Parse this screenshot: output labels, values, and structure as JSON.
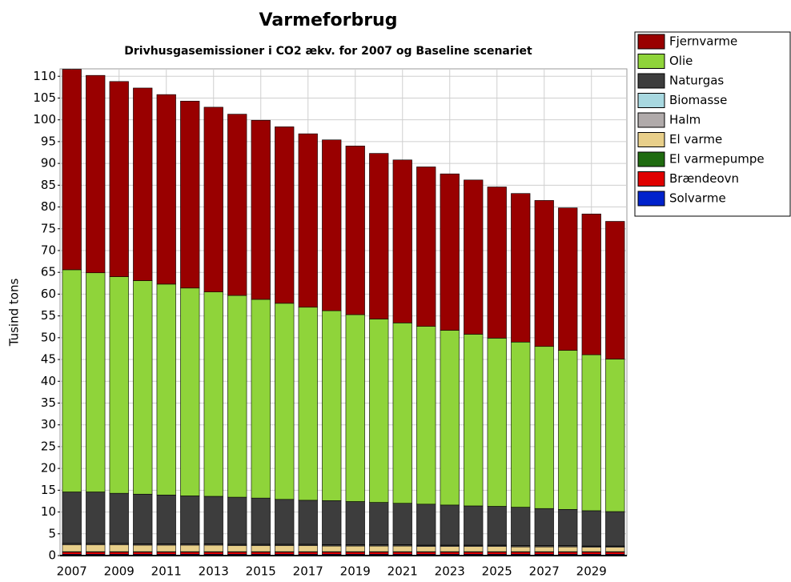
{
  "chart_data": {
    "type": "bar",
    "stacked": true,
    "title": "Varmeforbrug",
    "subtitle": "Drivhusgasemissioner i CO2 ækv. for 2007 og Baseline scenariet",
    "y_label": "Tusind tons",
    "categories": [
      "2007",
      null,
      "2009",
      null,
      "2011",
      null,
      "2013",
      null,
      "2015",
      null,
      "2017",
      null,
      "2019",
      null,
      "2021",
      null,
      "2023",
      null,
      "2025",
      null,
      "2027",
      null,
      "2029",
      null
    ],
    "series": [
      {
        "name": "Solvarme",
        "color": "#0022cc",
        "values": [
          0.3,
          0.3,
          0.3,
          0.3,
          0.3,
          0.3,
          0.3,
          0.3,
          0.3,
          0.3,
          0.3,
          0.3,
          0.3,
          0.3,
          0.3,
          0.3,
          0.3,
          0.3,
          0.3,
          0.3,
          0.3,
          0.3,
          0.3,
          0.3
        ]
      },
      {
        "name": "Brændeovn",
        "color": "#e00000",
        "values": [
          0.5,
          0.5,
          0.5,
          0.5,
          0.5,
          0.5,
          0.5,
          0.5,
          0.5,
          0.5,
          0.5,
          0.5,
          0.5,
          0.5,
          0.5,
          0.5,
          0.5,
          0.5,
          0.5,
          0.5,
          0.5,
          0.5,
          0.5,
          0.5
        ]
      },
      {
        "name": "El varmepumpe",
        "color": "#1f6b10",
        "values": [
          0.1,
          0.1,
          0.1,
          0.1,
          0.1,
          0.1,
          0.1,
          0.1,
          0.1,
          0.1,
          0.1,
          0.1,
          0.1,
          0.1,
          0.1,
          0.1,
          0.1,
          0.1,
          0.1,
          0.1,
          0.1,
          0.1,
          0.1,
          0.1
        ]
      },
      {
        "name": "El varme",
        "color": "#e8cf8a",
        "values": [
          1.6,
          1.6,
          1.6,
          1.5,
          1.5,
          1.5,
          1.5,
          1.4,
          1.4,
          1.4,
          1.4,
          1.3,
          1.3,
          1.3,
          1.3,
          1.2,
          1.2,
          1.2,
          1.2,
          1.1,
          1.1,
          1.1,
          1.0,
          1.0
        ]
      },
      {
        "name": "Halm",
        "color": "#b0aaaa",
        "values": [
          0.2,
          0.2,
          0.2,
          0.2,
          0.2,
          0.2,
          0.2,
          0.2,
          0.2,
          0.2,
          0.2,
          0.2,
          0.2,
          0.2,
          0.2,
          0.2,
          0.2,
          0.2,
          0.2,
          0.2,
          0.2,
          0.2,
          0.2,
          0.2
        ]
      },
      {
        "name": "Biomasse",
        "color": "#a8d8e0",
        "values": [
          0.1,
          0.1,
          0.1,
          0.1,
          0.1,
          0.1,
          0.1,
          0.1,
          0.1,
          0.1,
          0.1,
          0.1,
          0.1,
          0.1,
          0.1,
          0.1,
          0.1,
          0.1,
          0.1,
          0.1,
          0.1,
          0.1,
          0.1,
          0.1
        ]
      },
      {
        "name": "Naturgas",
        "color": "#3d3d3d",
        "values": [
          11.8,
          11.8,
          11.5,
          11.4,
          11.2,
          11.0,
          10.9,
          10.8,
          10.6,
          10.3,
          10.1,
          10.1,
          9.9,
          9.7,
          9.5,
          9.4,
          9.2,
          9.0,
          8.9,
          8.8,
          8.5,
          8.3,
          8.1,
          7.9
        ]
      },
      {
        "name": "Olie",
        "color": "#8fd43a",
        "values": [
          51.0,
          50.3,
          49.7,
          49.0,
          48.4,
          47.7,
          46.9,
          46.3,
          45.6,
          45.0,
          44.3,
          43.6,
          42.9,
          42.1,
          41.4,
          40.8,
          40.1,
          39.4,
          38.6,
          37.9,
          37.2,
          36.5,
          35.8,
          35.0
        ]
      },
      {
        "name": "Fjernvarme",
        "color": "#990000",
        "values": [
          46.0,
          45.3,
          44.8,
          44.2,
          43.5,
          42.9,
          42.4,
          41.6,
          41.1,
          40.5,
          39.8,
          39.2,
          38.7,
          38.0,
          37.4,
          36.6,
          35.9,
          35.4,
          34.7,
          34.1,
          33.5,
          32.7,
          32.3,
          31.6
        ]
      }
    ],
    "ylim": [
      0,
      111.7
    ],
    "yticks": [
      0,
      5,
      10,
      15,
      20,
      25,
      30,
      35,
      40,
      45,
      50,
      55,
      60,
      65,
      70,
      75,
      80,
      85,
      90,
      95,
      100,
      105,
      110
    ],
    "grid": true,
    "legend": "right"
  }
}
